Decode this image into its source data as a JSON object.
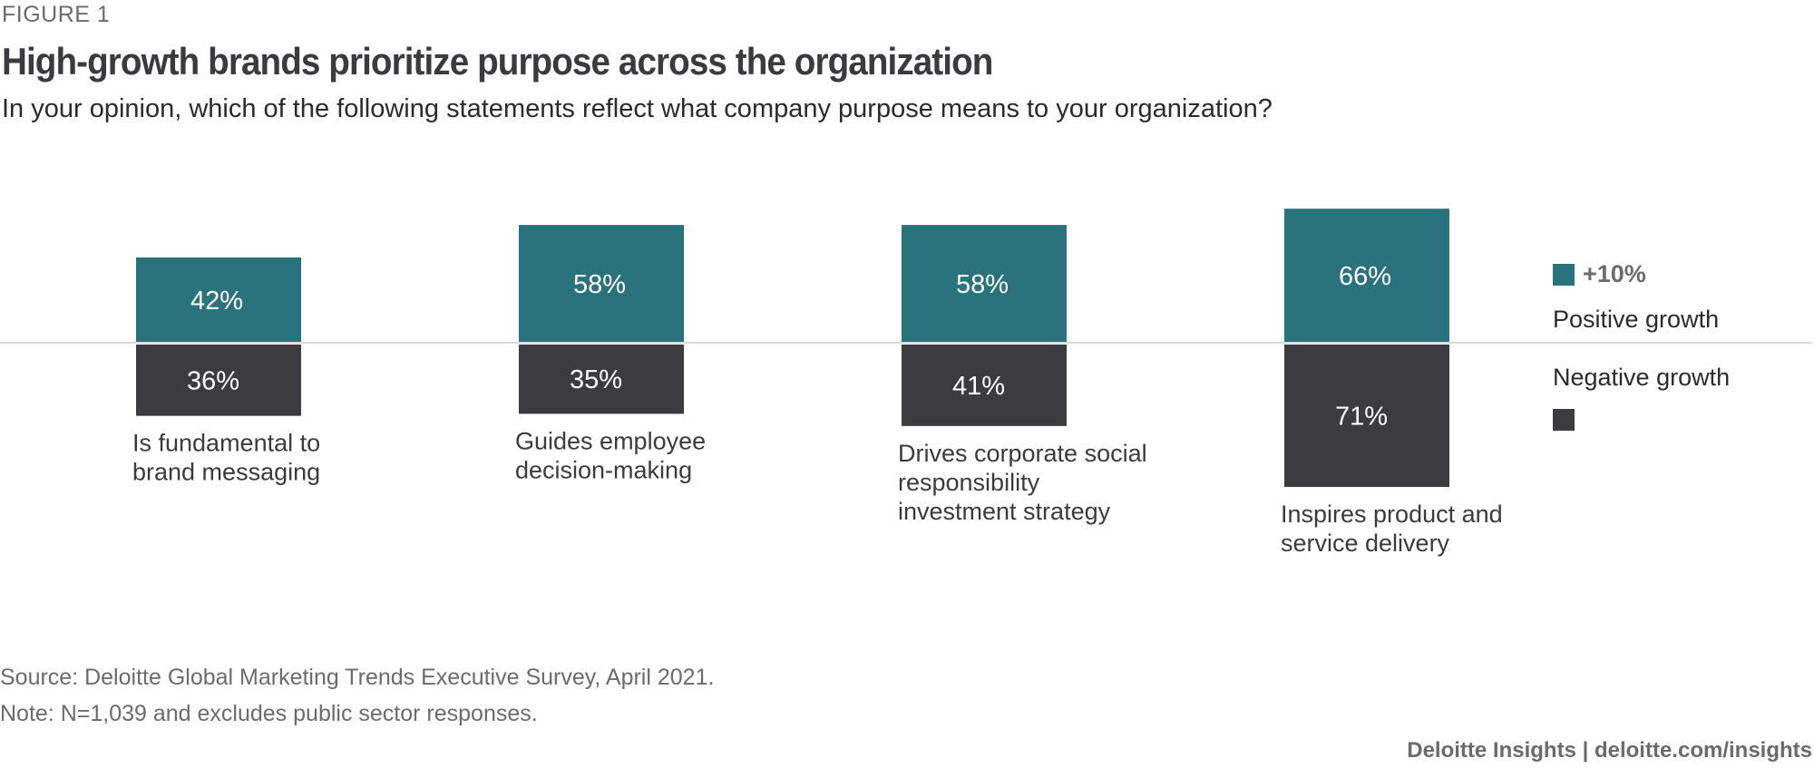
{
  "header": {
    "figure_label": "FIGURE 1",
    "title": "High-growth brands prioritize purpose across the organization",
    "subtitle": "In your opinion, which of the following statements reflect what company purpose means to your organization?"
  },
  "legend": {
    "positive_marker": "+10%",
    "positive_label": "Positive growth",
    "negative_label": "Negative growth"
  },
  "footer": {
    "source": "Source: Deloitte Global Marketing Trends Executive Survey, April 2021.",
    "note": "Note: N=1,039 and excludes public sector responses.",
    "credit": "Deloitte Insights | deloitte.com/insights"
  },
  "colors": {
    "positive": "#2a727c",
    "negative": "#3c3c40",
    "baseline": "#d9d9d9",
    "bar_label": "#ffffff",
    "category_label": "#3b3b3b"
  },
  "chart_data": {
    "type": "bar",
    "categories": [
      [
        "Is fundamental to",
        "brand messaging"
      ],
      [
        "Guides employee",
        "decision-making"
      ],
      [
        "Drives corporate social",
        "responsibility",
        "investment strategy"
      ],
      [
        "Inspires product and",
        "service delivery"
      ]
    ],
    "series": [
      {
        "name": "Positive growth",
        "direction": "up",
        "values": [
          42,
          58,
          58,
          66
        ],
        "labels": [
          "42%",
          "58%",
          "58%",
          "66%"
        ]
      },
      {
        "name": "Negative growth",
        "direction": "down",
        "values": [
          36,
          35,
          41,
          71
        ],
        "labels": [
          "36%",
          "35%",
          "41%",
          "71%"
        ]
      }
    ],
    "value_unit": "%",
    "ylim": [
      -71,
      66
    ],
    "grid": false,
    "legend_position": "right"
  }
}
